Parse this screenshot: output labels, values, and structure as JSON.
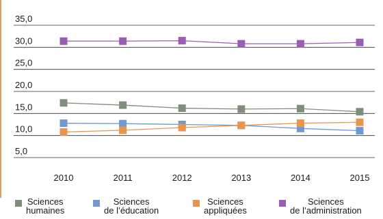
{
  "chart_data": {
    "type": "line",
    "title": "",
    "xlabel": "",
    "ylabel": "",
    "x": [
      "2010",
      "2011",
      "2012",
      "2013",
      "2014",
      "2015"
    ],
    "ylim": [
      5.0,
      35.0
    ],
    "yticks": [
      "5,0",
      "10,0",
      "15,0",
      "20,0",
      "25,0",
      "30,0",
      "35,0"
    ],
    "grid": true,
    "legend": "bottom",
    "series": [
      {
        "name": "Sciences humaines",
        "label_lines": [
          "Sciences",
          "humaines"
        ],
        "color": "#7f8f7c",
        "values": [
          17.4,
          16.9,
          16.2,
          16.0,
          16.1,
          15.4
        ]
      },
      {
        "name": "Sciences de l’éducation",
        "label_lines": [
          "Sciences",
          "de l’éducation"
        ],
        "color": "#6f9ad1",
        "values": [
          12.8,
          12.7,
          12.5,
          12.3,
          11.6,
          11.1
        ]
      },
      {
        "name": "Sciences appliquées",
        "label_lines": [
          "Sciences",
          "appliquées"
        ],
        "color": "#e8954f",
        "values": [
          10.8,
          11.2,
          11.8,
          12.3,
          12.8,
          13.0
        ]
      },
      {
        "name": "Sciences de l’administration",
        "label_lines": [
          "Sciences",
          "de l’administration"
        ],
        "color": "#9a5db3",
        "values": [
          31.4,
          31.4,
          31.5,
          30.8,
          30.8,
          31.1
        ]
      }
    ]
  }
}
